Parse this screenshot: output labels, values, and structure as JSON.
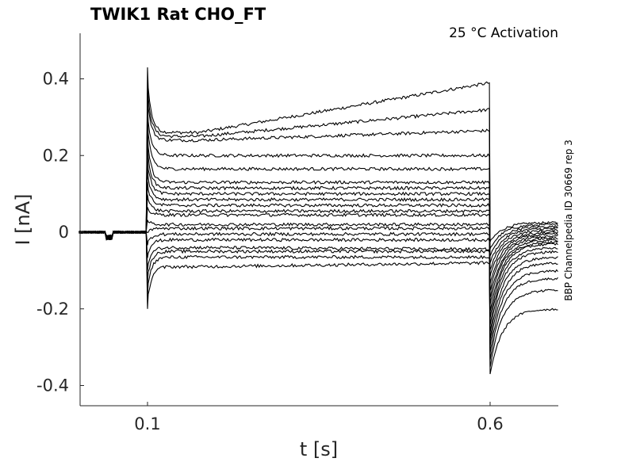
{
  "chart_data": {
    "type": "line",
    "title": "TWIK1  Rat  CHO_FT",
    "condition_label": "25 °C  Activation",
    "side_label": "BBP Channelpedia ID 30669 rep 3",
    "xlabel": "t [s]",
    "ylabel": "I [nA]",
    "xlim": [
      0.0,
      0.7
    ],
    "ylim": [
      -0.45,
      0.52
    ],
    "xticks": [
      {
        "value": 0.1,
        "label": "0.1"
      },
      {
        "value": 0.6,
        "label": "0.6"
      }
    ],
    "yticks": [
      {
        "value": 0.4,
        "label": "0.4"
      },
      {
        "value": 0.2,
        "label": "0.2"
      },
      {
        "value": 0.0,
        "label": "0"
      },
      {
        "value": -0.2,
        "label": "-0.2"
      },
      {
        "value": -0.4,
        "label": "-0.4"
      }
    ],
    "grid": false,
    "line_color": "#000000",
    "protocol": {
      "pulse_start": 0.1,
      "pulse_end": 0.6,
      "prepulse_start": 0.04,
      "prepulse_end": 0.05,
      "prepulse_level": -0.015
    },
    "sweeps": [
      {
        "steady": 0.26,
        "late": 0.39,
        "tail": 0.025
      },
      {
        "steady": 0.25,
        "late": 0.32,
        "tail": 0.02
      },
      {
        "steady": 0.24,
        "late": 0.265,
        "tail": 0.015
      },
      {
        "steady": 0.2,
        "late": 0.2,
        "tail": 0.01
      },
      {
        "steady": 0.165,
        "late": 0.165,
        "tail": 0.005
      },
      {
        "steady": 0.13,
        "late": 0.13,
        "tail": 0.0
      },
      {
        "steady": 0.115,
        "late": 0.115,
        "tail": -0.005
      },
      {
        "steady": 0.1,
        "late": 0.1,
        "tail": -0.01
      },
      {
        "steady": 0.085,
        "late": 0.085,
        "tail": -0.015
      },
      {
        "steady": 0.07,
        "late": 0.07,
        "tail": -0.02
      },
      {
        "steady": 0.055,
        "late": 0.055,
        "tail": -0.025
      },
      {
        "steady": 0.045,
        "late": 0.045,
        "tail": -0.03
      },
      {
        "steady": 0.02,
        "late": 0.02,
        "tail": -0.04
      },
      {
        "steady": 0.01,
        "late": 0.01,
        "tail": -0.05
      },
      {
        "steady": -0.005,
        "late": -0.005,
        "tail": -0.065
      },
      {
        "steady": -0.02,
        "late": -0.02,
        "tail": -0.08
      },
      {
        "steady": -0.04,
        "late": -0.045,
        "tail": -0.1
      },
      {
        "steady": -0.05,
        "late": -0.05,
        "tail": -0.12
      },
      {
        "steady": -0.065,
        "late": -0.065,
        "tail": -0.15
      },
      {
        "steady": -0.09,
        "late": -0.08,
        "tail": -0.2
      }
    ]
  }
}
